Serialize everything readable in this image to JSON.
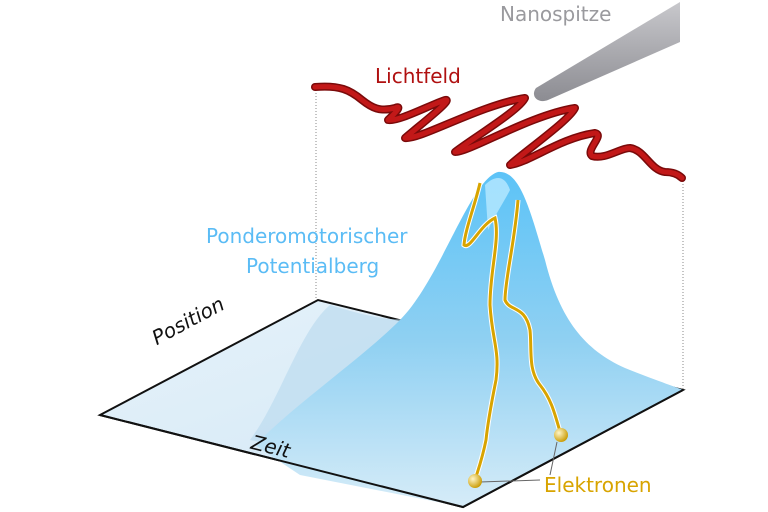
{
  "labels": {
    "tip": "Nanospitze",
    "light_field": "Lichtfeld",
    "potential_line1": "Ponderomotorischer",
    "potential_line2": "Potentialberg",
    "axis_position": "Position",
    "axis_time": "Zeit",
    "electrons": "Elektronen"
  },
  "colors": {
    "tip": "#9a9a9e",
    "light_field": "#b01010",
    "potential": "#5bbcf5",
    "electrons": "#d8a400",
    "floor_edge": "#111111"
  }
}
